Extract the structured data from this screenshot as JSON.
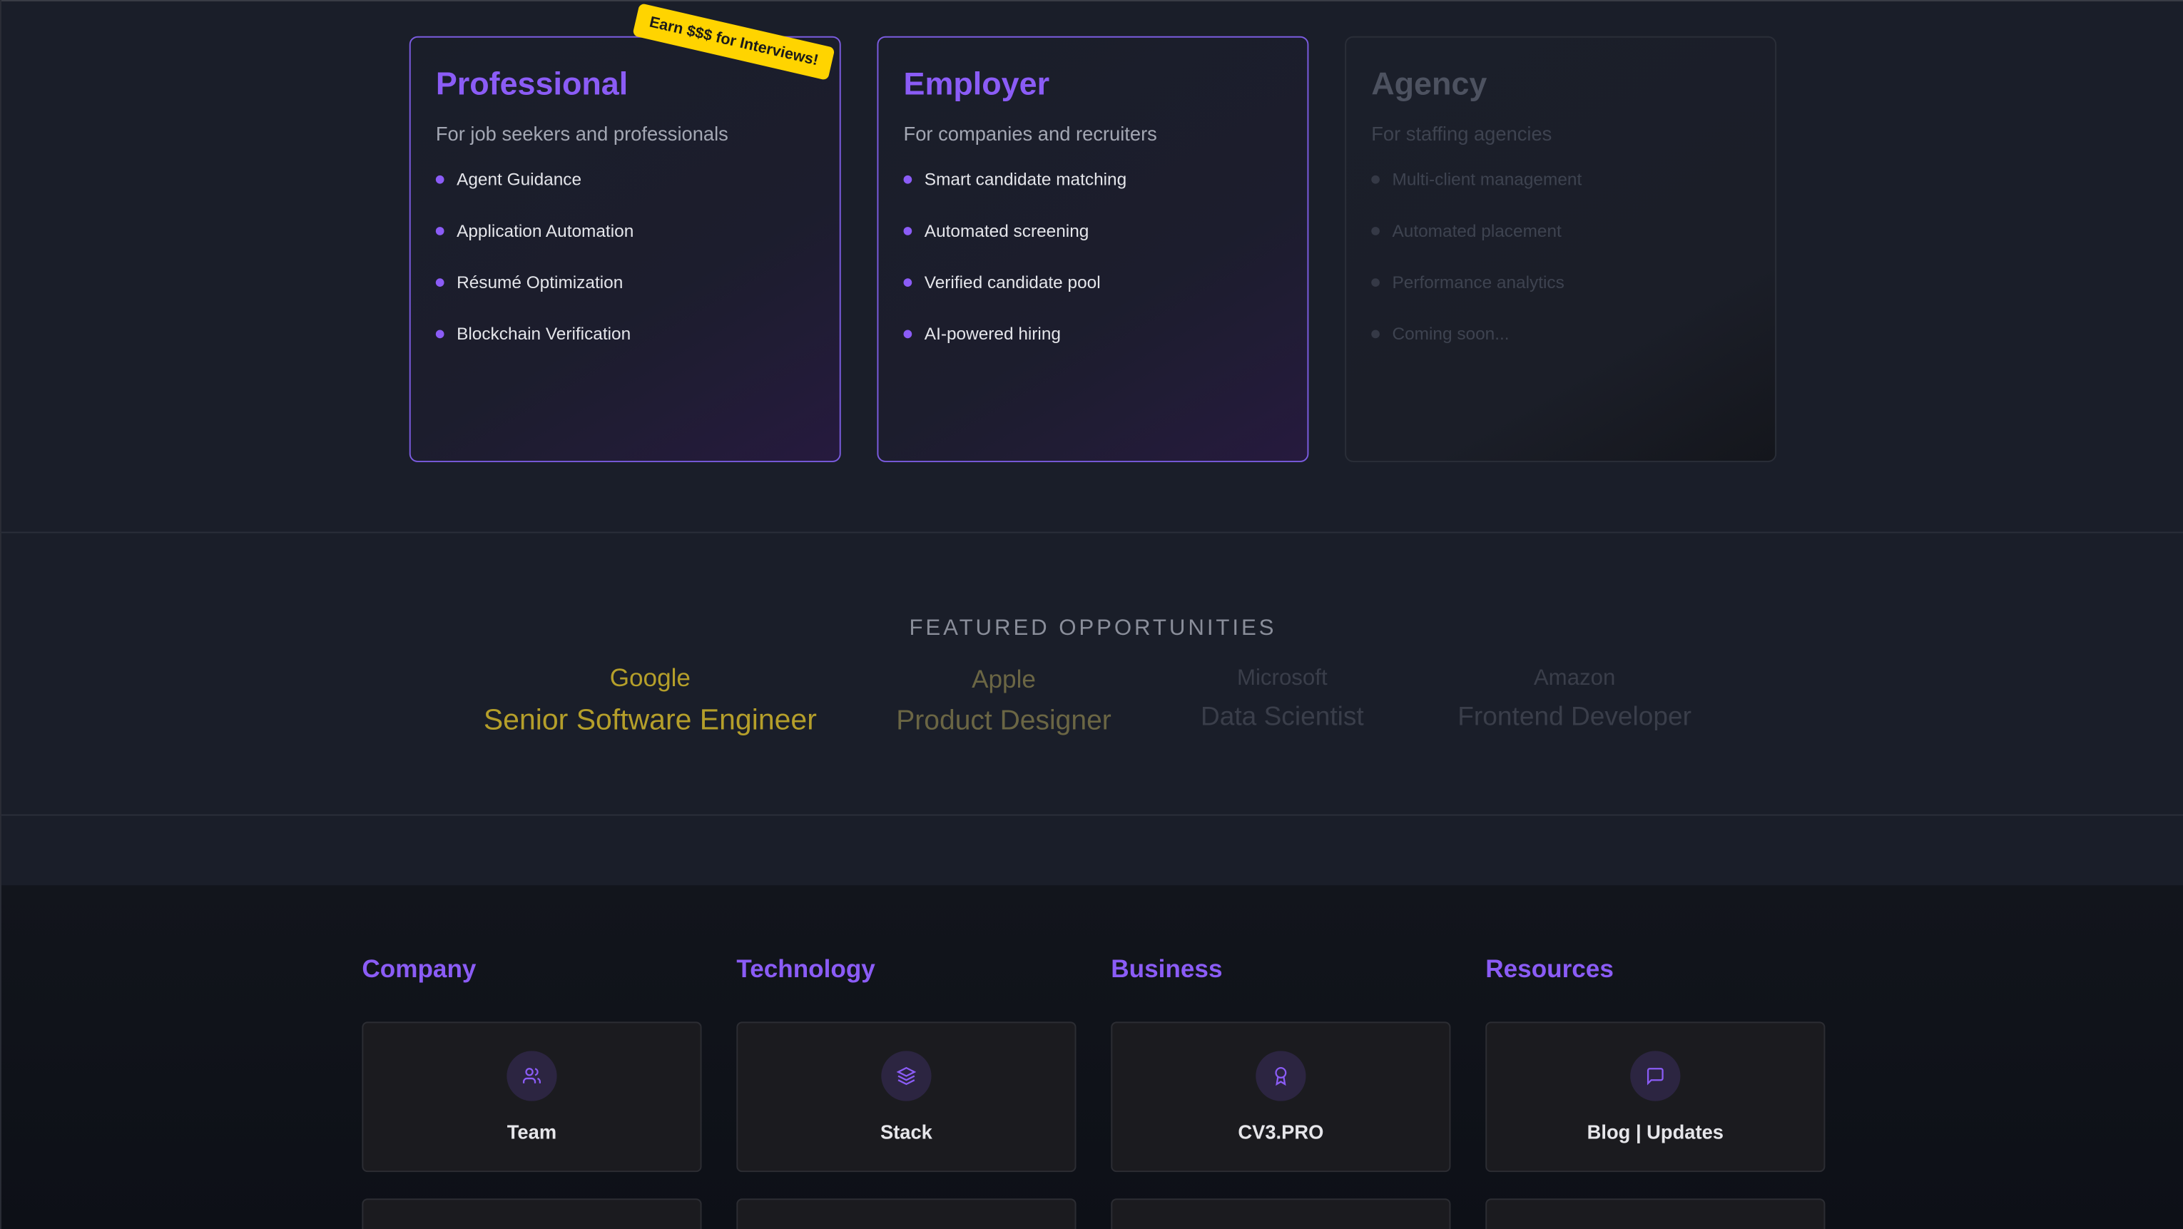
{
  "plans": [
    {
      "title": "Professional",
      "subtitle": "For job seekers and professionals",
      "features": [
        "Agent Guidance",
        "Application Automation",
        "Résumé Optimization",
        "Blockchain Verification"
      ],
      "badge": "Earn $$$ for Interviews!"
    },
    {
      "title": "Employer",
      "subtitle": "For companies and recruiters",
      "features": [
        "Smart candidate matching",
        "Automated screening",
        "Verified candidate pool",
        "AI-powered hiring"
      ]
    },
    {
      "title": "Agency",
      "subtitle": "For staffing agencies",
      "features": [
        "Multi-client management",
        "Automated placement",
        "Performance analytics",
        "Coming soon..."
      ]
    }
  ],
  "featured": {
    "title": "FEATURED OPPORTUNITIES",
    "items": [
      {
        "company": "Google",
        "role": "Senior Software Engineer",
        "color": "#b59f2a"
      },
      {
        "company": "Apple",
        "role": "Product Designer",
        "color": "#6b6644"
      },
      {
        "company": "Microsoft",
        "role": "Data Scientist",
        "color": "#3a3e4a"
      },
      {
        "company": "Amazon",
        "role": "Frontend Developer",
        "color": "#3a3e4a"
      }
    ]
  },
  "footer": {
    "columns": [
      {
        "heading": "Company",
        "tile": "Team",
        "icon": "users-icon"
      },
      {
        "heading": "Technology",
        "tile": "Stack",
        "icon": "layers-icon"
      },
      {
        "heading": "Business",
        "tile": "CV3.PRO",
        "icon": "award-icon"
      },
      {
        "heading": "Resources",
        "tile": "Blog | Updates",
        "icon": "message-square-icon"
      }
    ]
  },
  "colors": {
    "accent": "#8b5cf6",
    "badge": "#ffd400"
  }
}
